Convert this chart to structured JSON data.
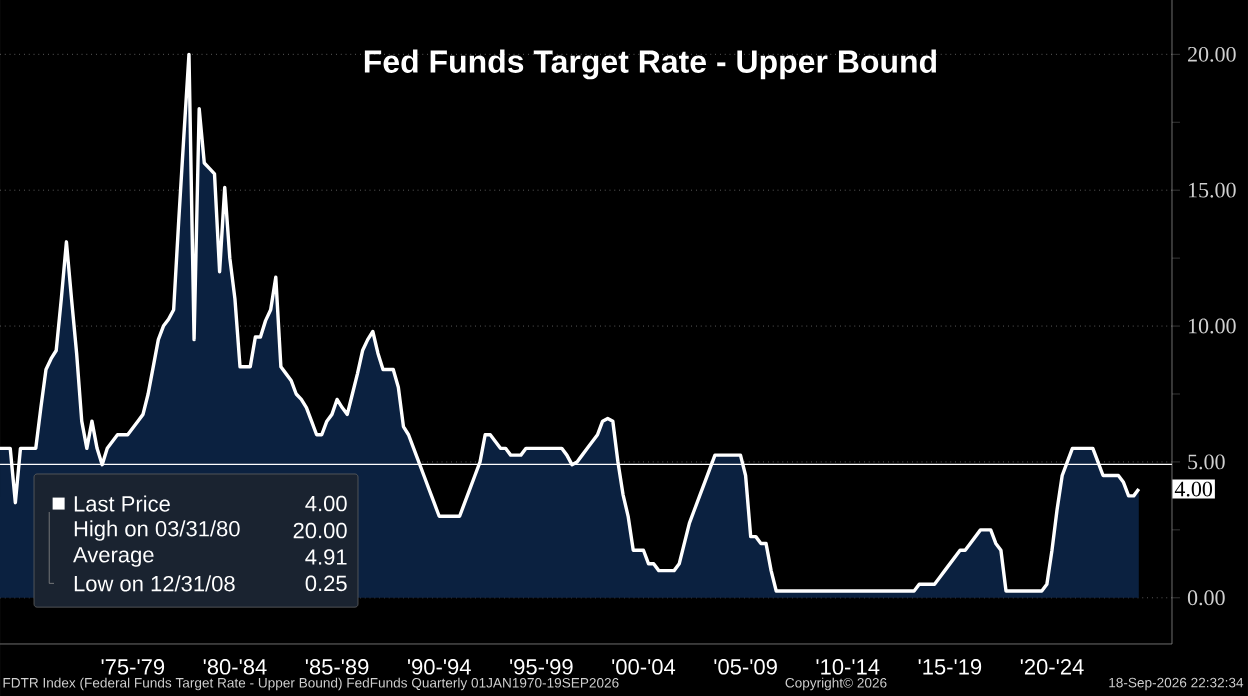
{
  "chart_data": {
    "type": "area",
    "title": "Fed Funds Target Rate - Upper Bound",
    "categories": [
      null,
      null,
      null,
      null,
      null,
      null,
      null,
      null,
      null,
      null,
      null,
      null,
      null,
      null,
      null,
      null,
      null,
      null,
      null,
      null,
      null,
      null,
      null,
      null,
      null,
      null,
      "'75-'79",
      null,
      null,
      null,
      null,
      null,
      null,
      null,
      null,
      null,
      null,
      null,
      null,
      null,
      null,
      null,
      null,
      null,
      null,
      null,
      "'80-'84",
      null,
      null,
      null,
      null,
      null,
      null,
      null,
      null,
      null,
      null,
      null,
      null,
      null,
      null,
      null,
      null,
      null,
      null,
      null,
      "'85-'89",
      null,
      null,
      null,
      null,
      null,
      null,
      null,
      null,
      null,
      null,
      null,
      null,
      null,
      null,
      null,
      null,
      null,
      null,
      null,
      "'90-'94",
      null,
      null,
      null,
      null,
      null,
      null,
      null,
      null,
      null,
      null,
      null,
      null,
      null,
      null,
      null,
      null,
      null,
      null,
      null,
      "'95-'99",
      null,
      null,
      null,
      null,
      null,
      null,
      null,
      null,
      null,
      null,
      null,
      null,
      null,
      null,
      null,
      null,
      null,
      null,
      null,
      "'00-'04",
      null,
      null,
      null,
      null,
      null,
      null,
      null,
      null,
      null,
      null,
      null,
      null,
      null,
      null,
      null,
      null,
      null,
      null,
      null,
      "'05-'09",
      null,
      null,
      null,
      null,
      null,
      null,
      null,
      null,
      null,
      null,
      null,
      null,
      null,
      null,
      null,
      null,
      null,
      null,
      null,
      "'10-'14",
      null,
      null,
      null,
      null,
      null,
      null,
      null,
      null,
      null,
      null,
      null,
      null,
      null,
      null,
      null,
      null,
      null,
      null,
      null,
      "'15-'19",
      null,
      null,
      null,
      null,
      null,
      null,
      null,
      null,
      null,
      null,
      null,
      null,
      null,
      null,
      null,
      null,
      null,
      null,
      null,
      "'20-'24",
      null,
      null,
      null,
      null,
      null,
      null,
      null,
      null,
      null,
      null,
      null,
      null,
      null,
      null,
      null,
      null,
      null
    ],
    "series": [
      {
        "color": "#ffffff",
        "values": [
          5.5,
          5.5,
          5.5,
          3.5,
          5.5,
          5.5,
          5.5,
          5.5,
          7.0,
          8.4,
          8.8,
          9.1,
          11.0,
          13.1,
          11.0,
          9.0,
          6.5,
          5.5,
          6.5,
          5.5,
          4.9,
          5.5,
          5.75,
          6.0,
          6.0,
          6.0,
          6.25,
          6.5,
          6.75,
          7.5,
          8.5,
          9.5,
          10.0,
          10.25,
          10.6,
          13.9,
          17.0,
          20.0,
          9.5,
          18.0,
          16.0,
          15.8,
          15.6,
          12.0,
          15.1,
          12.5,
          11.0,
          8.5,
          8.5,
          8.5,
          9.6,
          9.6,
          10.2,
          10.6,
          11.8,
          8.5,
          8.25,
          8.0,
          7.5,
          7.3,
          7.0,
          6.5,
          6.0,
          6.0,
          6.5,
          6.75,
          7.3,
          7.0,
          6.75,
          7.5,
          8.25,
          9.1,
          9.5,
          9.8,
          9.0,
          8.4,
          8.4,
          8.4,
          7.75,
          6.3,
          6.0,
          5.5,
          5.0,
          4.5,
          4.0,
          3.5,
          3.0,
          3.0,
          3.0,
          3.0,
          3.0,
          3.5,
          4.0,
          4.5,
          5.0,
          6.0,
          6.0,
          5.75,
          5.5,
          5.5,
          5.25,
          5.25,
          5.25,
          5.5,
          5.5,
          5.5,
          5.5,
          5.5,
          5.5,
          5.5,
          5.5,
          5.25,
          4.9,
          5.0,
          5.25,
          5.5,
          5.75,
          6.0,
          6.5,
          6.6,
          6.5,
          5.0,
          3.8,
          3.0,
          1.75,
          1.75,
          1.75,
          1.25,
          1.25,
          1.0,
          1.0,
          1.0,
          1.0,
          1.25,
          2.0,
          2.75,
          3.25,
          3.75,
          4.25,
          4.75,
          5.25,
          5.25,
          5.25,
          5.25,
          5.25,
          5.25,
          4.5,
          2.25,
          2.25,
          2.0,
          2.0,
          1.0,
          0.25,
          0.25,
          0.25,
          0.25,
          0.25,
          0.25,
          0.25,
          0.25,
          0.25,
          0.25,
          0.25,
          0.25,
          0.25,
          0.25,
          0.25,
          0.25,
          0.25,
          0.25,
          0.25,
          0.25,
          0.25,
          0.25,
          0.25,
          0.25,
          0.25,
          0.25,
          0.25,
          0.25,
          0.5,
          0.5,
          0.5,
          0.5,
          0.75,
          1.0,
          1.25,
          1.5,
          1.75,
          1.75,
          2.0,
          2.25,
          2.5,
          2.5,
          2.5,
          2.0,
          1.75,
          0.25,
          0.25,
          0.25,
          0.25,
          0.25,
          0.25,
          0.25,
          0.25,
          0.5,
          1.75,
          3.25,
          4.5,
          5.0,
          5.5,
          5.5,
          5.5,
          5.5,
          5.5,
          5.0,
          4.5,
          4.5,
          4.5,
          4.5,
          4.25,
          3.75,
          3.75,
          4.0
        ]
      }
    ],
    "ylim": [
      -1.7,
      22
    ],
    "yticks": [
      {
        "value": 0,
        "label": "0.00"
      },
      {
        "value": 5,
        "label": "5.00"
      },
      {
        "value": 10,
        "label": "10.00"
      },
      {
        "value": 15,
        "label": "15.00"
      },
      {
        "value": 20,
        "label": "20.00"
      }
    ],
    "grid": "y",
    "ref_lines": [
      {
        "axis": "y",
        "value": 4.91,
        "color": "#ffffff"
      }
    ],
    "annotations": [
      "Last Price",
      "4.00",
      "High on 03/31/80",
      "20.00",
      "Average",
      "4.91",
      "Low on 12/31/08",
      "0.25",
      "4.00",
      "FDTR Index (Federal Funds Target Rate - Upper Bound) FedFunds Quarterly 01JAN1970-19SEP2026",
      "Copyright© 2026",
      "18-Sep-2026 22:32:34"
    ]
  }
}
